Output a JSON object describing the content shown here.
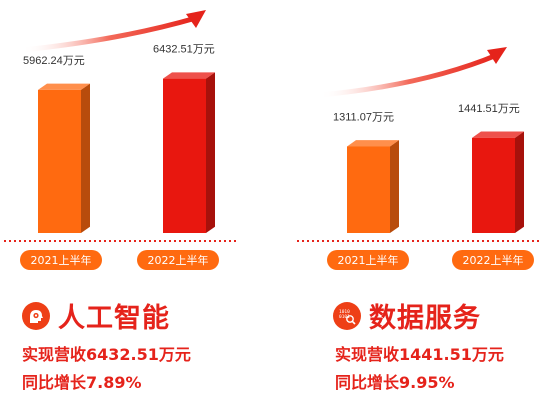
{
  "chart_data": [
    {
      "type": "bar",
      "categories": [
        "2021上半年",
        "2022上半年"
      ],
      "values": [
        5962.24,
        6432.51
      ],
      "value_labels": [
        "5962.24万元",
        "6432.51万元"
      ],
      "bar_colors": [
        "#ff6a10",
        "#e8170f"
      ]
    },
    {
      "type": "bar",
      "categories": [
        "2021上半年",
        "2022上半年"
      ],
      "values": [
        1311.07,
        1441.51
      ],
      "value_labels": [
        "1311.07万元",
        "1441.51万元"
      ],
      "bar_colors": [
        "#ff6a10",
        "#e8170f"
      ]
    }
  ],
  "sections": [
    {
      "title": "人工智能",
      "icon": "ai-head-gear-icon",
      "revenue_text": "实现营收6432.51万元",
      "growth_text": "同比增长7.89%"
    },
    {
      "title": "数据服务",
      "icon": "binary-search-icon",
      "revenue_text": "实现营收1441.51万元",
      "growth_text": "同比增长9.95%"
    }
  ],
  "colors": {
    "accent_red": "#e5231b",
    "accent_orange": "#ff6a10",
    "dotted_line": "#e5231b"
  }
}
